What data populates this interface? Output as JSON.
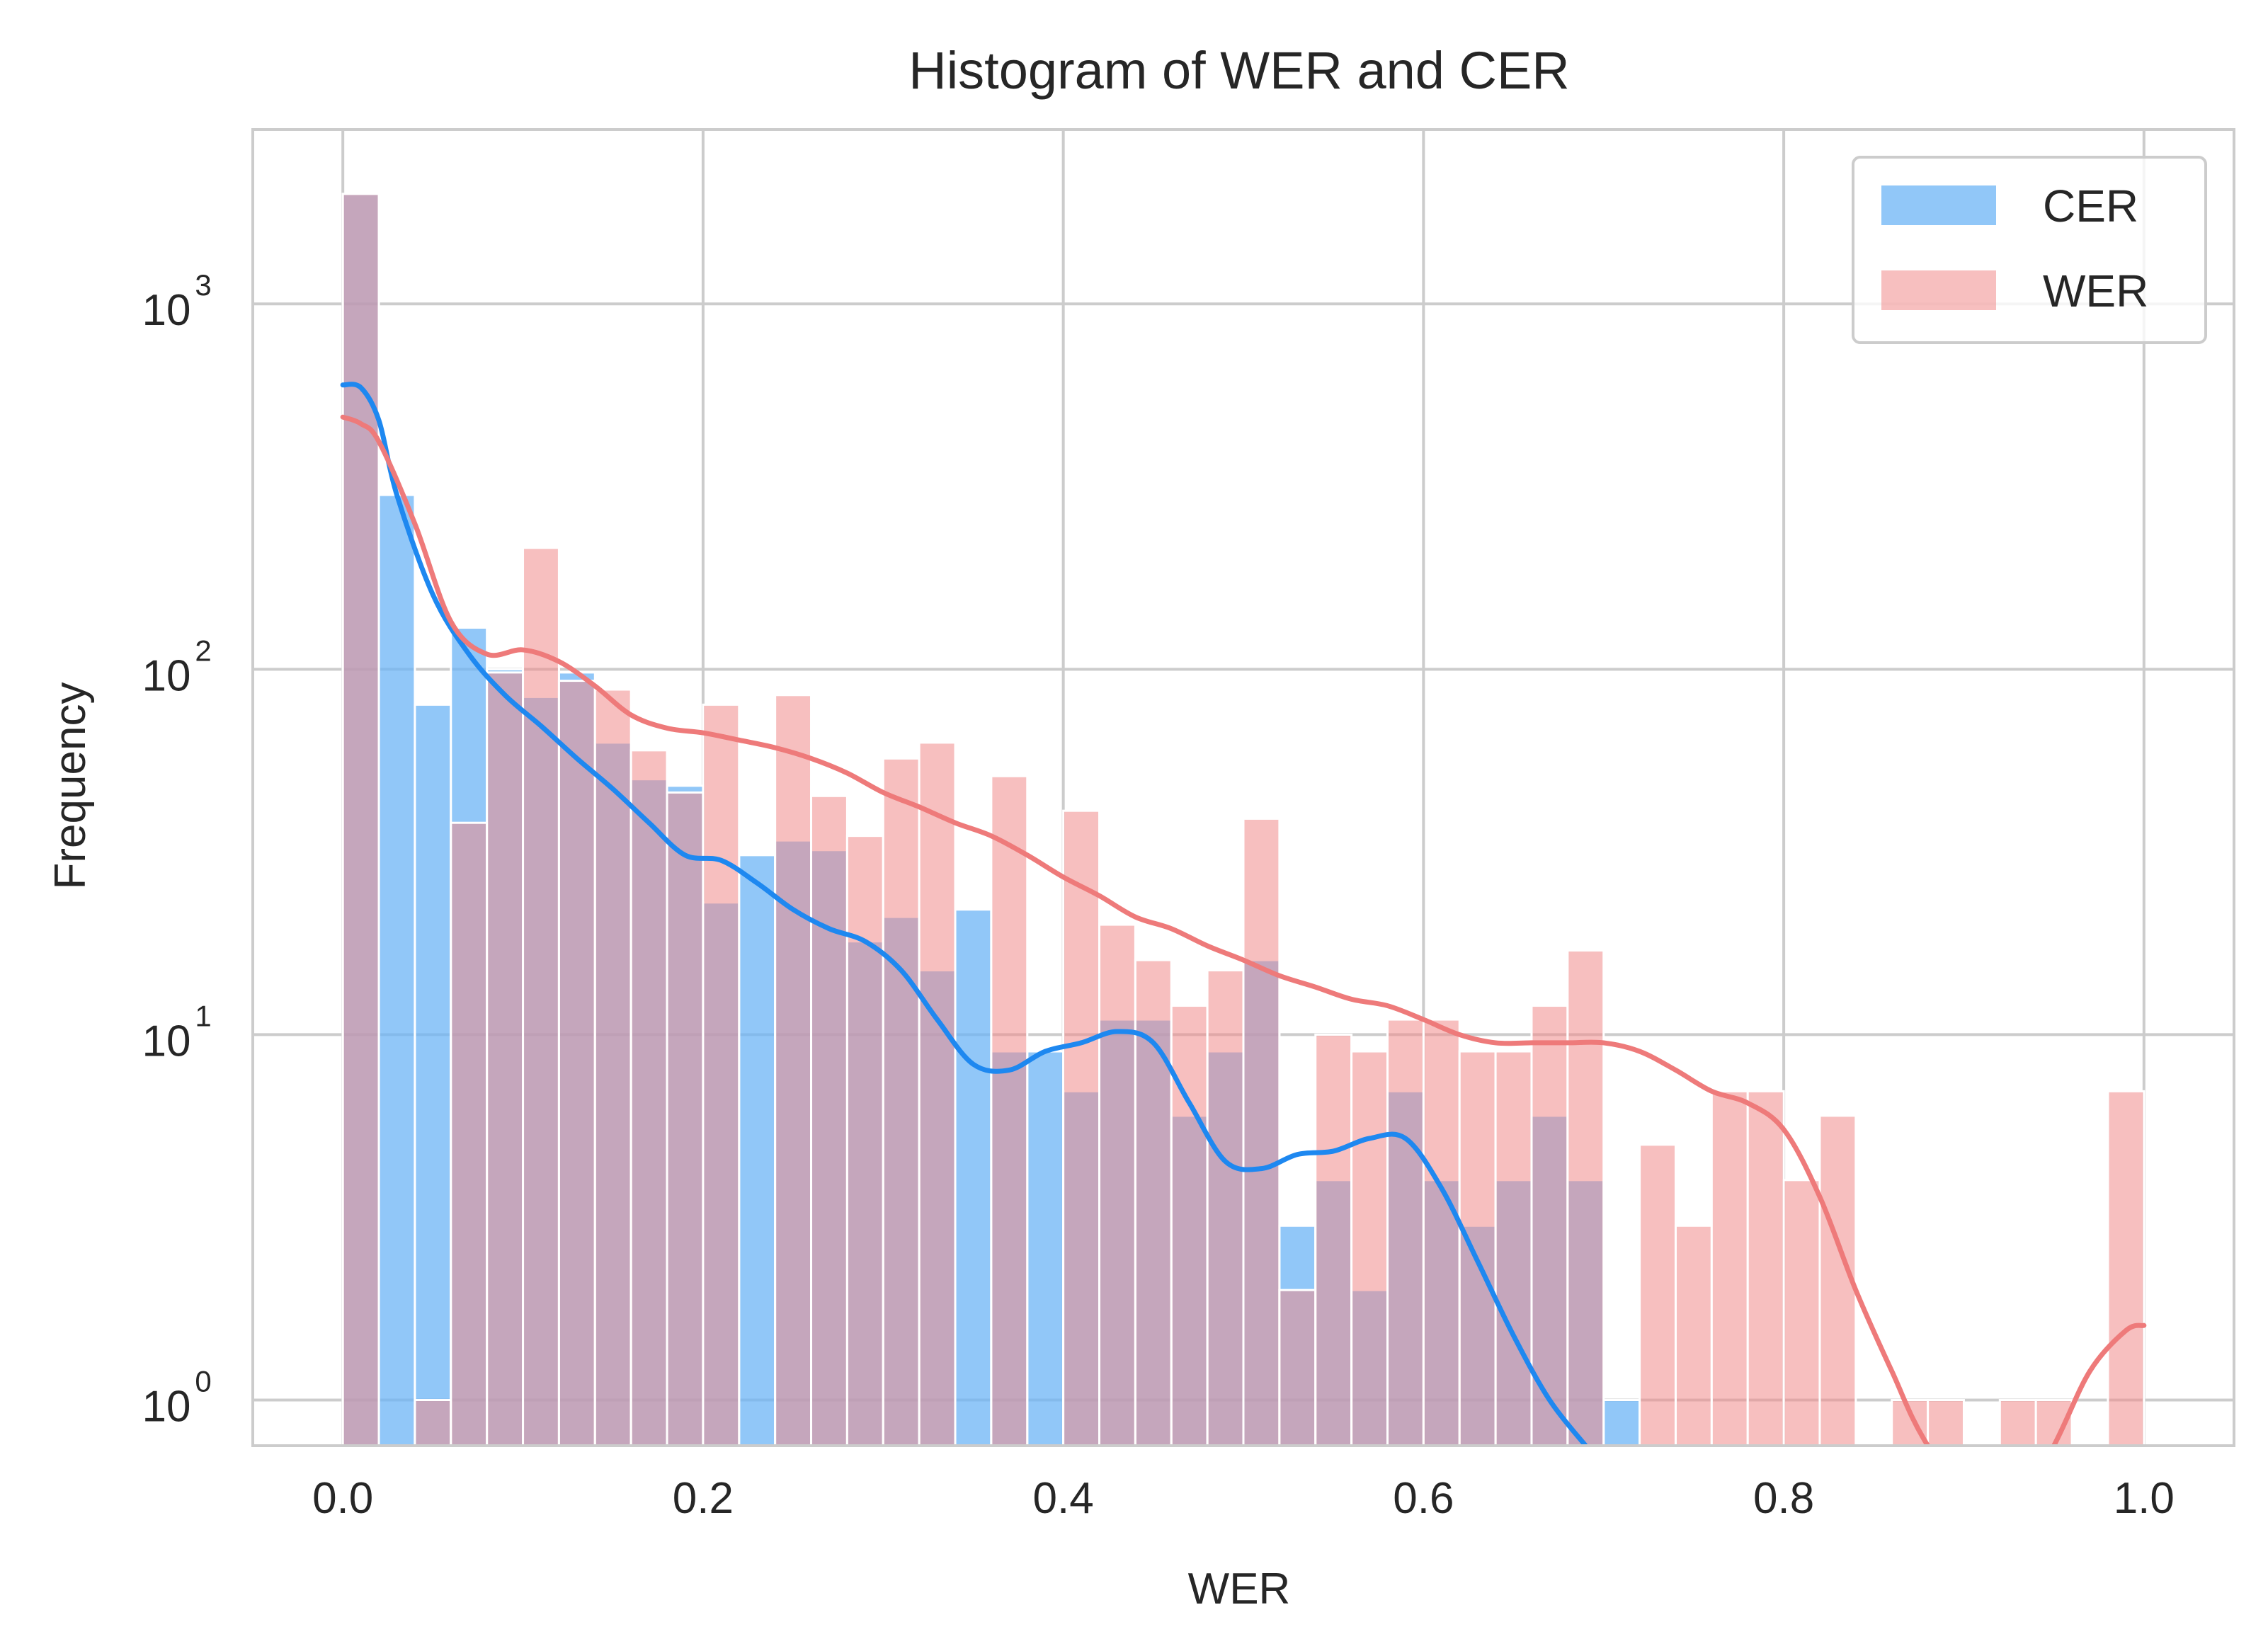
{
  "chart_data": {
    "type": "bar",
    "title": "Histogram of WER and CER",
    "xlabel": "WER",
    "ylabel": "Frequency",
    "xlim": [
      -0.05,
      1.05
    ],
    "ylim": [
      0.75,
      3000
    ],
    "yscale": "log",
    "grid": true,
    "legend_position": "top-right",
    "x_ticks": [
      0.0,
      0.2,
      0.4,
      0.6,
      0.8,
      1.0
    ],
    "x_tick_labels": [
      "0.0",
      "0.2",
      "0.4",
      "0.6",
      "0.8",
      "1.0"
    ],
    "y_ticks": [
      1,
      10,
      100,
      1000
    ],
    "y_tick_labels": [
      {
        "base": "10",
        "exp": "0"
      },
      {
        "base": "10",
        "exp": "1"
      },
      {
        "base": "10",
        "exp": "2"
      },
      {
        "base": "10",
        "exp": "3"
      }
    ],
    "bin_width": 0.02,
    "series": [
      {
        "name": "CER",
        "color": "#6cb4f5",
        "alpha": 0.75,
        "kde_color": "#1e88f0",
        "bin_starts": [
          0.0,
          0.02,
          0.04,
          0.06,
          0.08,
          0.1,
          0.12,
          0.14,
          0.16,
          0.18,
          0.2,
          0.22,
          0.24,
          0.26,
          0.28,
          0.3,
          0.32,
          0.34,
          0.36,
          0.38,
          0.4,
          0.42,
          0.44,
          0.46,
          0.48,
          0.5,
          0.52,
          0.54,
          0.56,
          0.58,
          0.6,
          0.62,
          0.64,
          0.66,
          0.68,
          0.7
        ],
        "values": [
          2000,
          300,
          80,
          130,
          100,
          84,
          98,
          63,
          50,
          48,
          23,
          31,
          34,
          32,
          18,
          21,
          15,
          22,
          9,
          9,
          7,
          11,
          11,
          6,
          9,
          16,
          3,
          4,
          2,
          7,
          4,
          3,
          4,
          6,
          4,
          1
        ],
        "kde_x": [
          0.0,
          0.01,
          0.02,
          0.03,
          0.05,
          0.07,
          0.09,
          0.11,
          0.13,
          0.15,
          0.17,
          0.19,
          0.21,
          0.23,
          0.25,
          0.27,
          0.29,
          0.31,
          0.33,
          0.35,
          0.37,
          0.39,
          0.41,
          0.43,
          0.45,
          0.47,
          0.49,
          0.51,
          0.53,
          0.55,
          0.57,
          0.59,
          0.61,
          0.63,
          0.65,
          0.67,
          0.69
        ],
        "kde_y": [
          600,
          590,
          480,
          300,
          160,
          110,
          85,
          70,
          57,
          47,
          38,
          31,
          30,
          26,
          22,
          19.5,
          18,
          15,
          11,
          8.3,
          8,
          9,
          9.5,
          10.2,
          9.5,
          6.5,
          4.5,
          4.3,
          4.7,
          4.8,
          5.2,
          5.2,
          3.8,
          2.4,
          1.5,
          1.0,
          0.75
        ]
      },
      {
        "name": "WER",
        "color": "#f08a8a",
        "alpha": 0.55,
        "kde_color": "#ee7a7a",
        "bin_starts": [
          0.0,
          0.02,
          0.04,
          0.06,
          0.08,
          0.1,
          0.12,
          0.14,
          0.16,
          0.18,
          0.2,
          0.22,
          0.24,
          0.26,
          0.28,
          0.3,
          0.32,
          0.34,
          0.36,
          0.38,
          0.4,
          0.42,
          0.44,
          0.46,
          0.48,
          0.5,
          0.52,
          0.54,
          0.56,
          0.58,
          0.6,
          0.62,
          0.64,
          0.66,
          0.68,
          0.7,
          0.72,
          0.74,
          0.76,
          0.78,
          0.8,
          0.82,
          0.84,
          0.86,
          0.88,
          0.9,
          0.92,
          0.94,
          0.96,
          0.98
        ],
        "values": [
          2000,
          0,
          1,
          38,
          98,
          215,
          93,
          88,
          60,
          46,
          80,
          0,
          85,
          45,
          35,
          57,
          63,
          0,
          51,
          0,
          41,
          20,
          16,
          12,
          15,
          39,
          2,
          10,
          9,
          11,
          11,
          9,
          9,
          12,
          17,
          0,
          5,
          3,
          7,
          7,
          4,
          6,
          0,
          1,
          1,
          0,
          1,
          1,
          0,
          7
        ],
        "kde_x": [
          0.0,
          0.01,
          0.02,
          0.04,
          0.06,
          0.08,
          0.1,
          0.12,
          0.14,
          0.16,
          0.18,
          0.2,
          0.22,
          0.24,
          0.26,
          0.28,
          0.3,
          0.32,
          0.34,
          0.36,
          0.38,
          0.4,
          0.42,
          0.44,
          0.46,
          0.48,
          0.5,
          0.52,
          0.54,
          0.56,
          0.58,
          0.6,
          0.62,
          0.64,
          0.66,
          0.68,
          0.7,
          0.72,
          0.74,
          0.76,
          0.78,
          0.8,
          0.82,
          0.84,
          0.86,
          0.88,
          0.92,
          0.95,
          0.97,
          0.99,
          1.0
        ],
        "kde_y": [
          490,
          470,
          420,
          250,
          135,
          110,
          113,
          105,
          90,
          75,
          69,
          67,
          64,
          61,
          57,
          52,
          46,
          42,
          38,
          35,
          31,
          27,
          24,
          21,
          19.5,
          17.5,
          16,
          14.5,
          13.5,
          12.5,
          12,
          11,
          10,
          9.5,
          9.5,
          9.5,
          9.5,
          9,
          8,
          7,
          6.5,
          5.5,
          3.6,
          2.0,
          1.2,
          0.75,
          0.4,
          0.75,
          1.2,
          1.55,
          1.6
        ]
      }
    ]
  }
}
